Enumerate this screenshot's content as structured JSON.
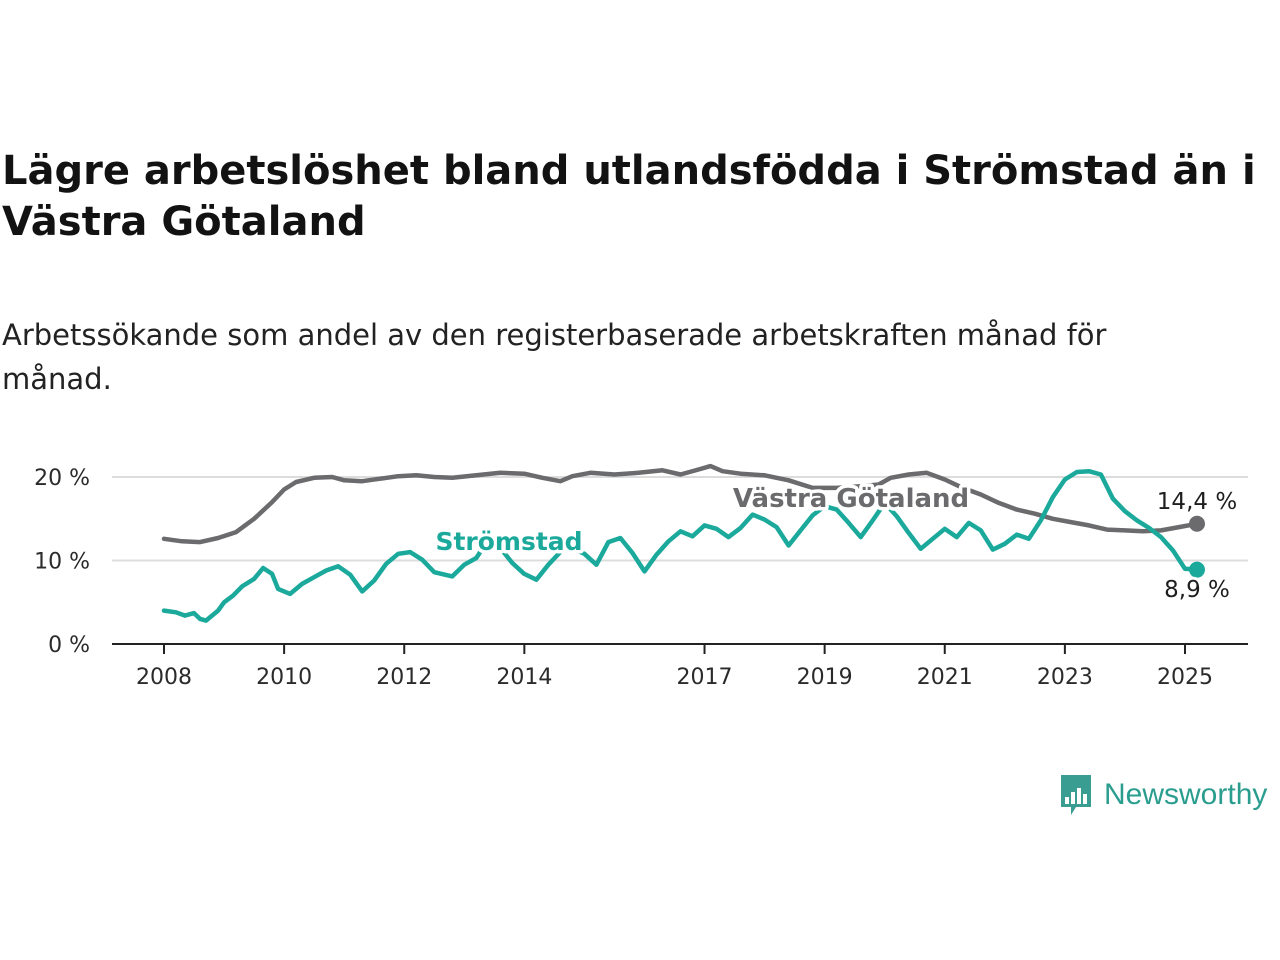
{
  "header": {
    "title": "Lägre arbetslöshet bland utlandsfödda i Strömstad än i Västra Götaland",
    "subtitle": "Arbetssökande som andel av den registerbaserade arbetskraften månad för månad."
  },
  "brand": {
    "name": "Newsworthy",
    "icon": "newsworthy-logo-icon",
    "color": "#3a9d92"
  },
  "chart_data": {
    "type": "line",
    "title": "Lägre arbetslöshet bland utlandsfödda i Strömstad än i Västra Götaland",
    "subtitle": "Arbetssökande som andel av den registerbaserade arbetskraften månad för månad.",
    "xlabel": "",
    "ylabel": "",
    "x_ticks": [
      "2008",
      "2010",
      "2012",
      "2014",
      "2017",
      "2019",
      "2021",
      "2023",
      "2025"
    ],
    "x_tick_values": [
      2008,
      2010,
      2012,
      2014,
      2017,
      2019,
      2021,
      2023,
      2025
    ],
    "y_ticks": [
      "0 %",
      "10 %",
      "20 %"
    ],
    "y_tick_values": [
      0,
      10,
      20
    ],
    "xlim": [
      2008,
      2025.2
    ],
    "ylim": [
      0,
      20
    ],
    "grid": true,
    "legend": "inline labels",
    "series": [
      {
        "name": "Västra Götaland",
        "color": "#6b6b6e",
        "end_label": "14,4 %",
        "points": [
          [
            2008.0,
            12.6
          ],
          [
            2008.3,
            12.3
          ],
          [
            2008.6,
            12.2
          ],
          [
            2008.9,
            12.7
          ],
          [
            2009.2,
            13.4
          ],
          [
            2009.5,
            15.0
          ],
          [
            2009.8,
            17.0
          ],
          [
            2010.0,
            18.5
          ],
          [
            2010.2,
            19.4
          ],
          [
            2010.5,
            19.9
          ],
          [
            2010.8,
            20.0
          ],
          [
            2011.0,
            19.6
          ],
          [
            2011.3,
            19.5
          ],
          [
            2011.6,
            19.8
          ],
          [
            2011.9,
            20.1
          ],
          [
            2012.2,
            20.2
          ],
          [
            2012.5,
            20.0
          ],
          [
            2012.8,
            19.9
          ],
          [
            2013.2,
            20.2
          ],
          [
            2013.6,
            20.5
          ],
          [
            2014.0,
            20.4
          ],
          [
            2014.3,
            19.9
          ],
          [
            2014.6,
            19.5
          ],
          [
            2014.8,
            20.1
          ],
          [
            2015.1,
            20.5
          ],
          [
            2015.5,
            20.3
          ],
          [
            2015.9,
            20.5
          ],
          [
            2016.3,
            20.8
          ],
          [
            2016.6,
            20.3
          ],
          [
            2016.9,
            20.9
          ],
          [
            2017.1,
            21.3
          ],
          [
            2017.3,
            20.7
          ],
          [
            2017.6,
            20.4
          ],
          [
            2018.0,
            20.2
          ],
          [
            2018.4,
            19.6
          ],
          [
            2018.8,
            18.7
          ],
          [
            2019.2,
            18.7
          ],
          [
            2019.6,
            18.9
          ],
          [
            2019.9,
            19.1
          ],
          [
            2020.1,
            19.9
          ],
          [
            2020.4,
            20.3
          ],
          [
            2020.7,
            20.5
          ],
          [
            2021.0,
            19.7
          ],
          [
            2021.3,
            18.7
          ],
          [
            2021.6,
            17.9
          ],
          [
            2021.9,
            16.9
          ],
          [
            2022.2,
            16.1
          ],
          [
            2022.5,
            15.6
          ],
          [
            2022.8,
            15.0
          ],
          [
            2023.1,
            14.6
          ],
          [
            2023.4,
            14.2
          ],
          [
            2023.7,
            13.7
          ],
          [
            2024.0,
            13.6
          ],
          [
            2024.3,
            13.5
          ],
          [
            2024.6,
            13.6
          ],
          [
            2024.9,
            14.0
          ],
          [
            2025.2,
            14.4
          ]
        ]
      },
      {
        "name": "Strömstad",
        "color": "#1ba99c",
        "end_label": "8,9 %",
        "points": [
          [
            2008.0,
            4.0
          ],
          [
            2008.2,
            3.8
          ],
          [
            2008.35,
            3.4
          ],
          [
            2008.5,
            3.7
          ],
          [
            2008.6,
            3.0
          ],
          [
            2008.7,
            2.8
          ],
          [
            2008.9,
            4.0
          ],
          [
            2009.0,
            5.0
          ],
          [
            2009.15,
            5.8
          ],
          [
            2009.3,
            6.9
          ],
          [
            2009.5,
            7.8
          ],
          [
            2009.65,
            9.1
          ],
          [
            2009.8,
            8.4
          ],
          [
            2009.9,
            6.6
          ],
          [
            2010.1,
            6.0
          ],
          [
            2010.3,
            7.2
          ],
          [
            2010.5,
            8.0
          ],
          [
            2010.7,
            8.8
          ],
          [
            2010.9,
            9.3
          ],
          [
            2011.1,
            8.3
          ],
          [
            2011.3,
            6.3
          ],
          [
            2011.5,
            7.6
          ],
          [
            2011.7,
            9.6
          ],
          [
            2011.9,
            10.8
          ],
          [
            2012.1,
            11.0
          ],
          [
            2012.3,
            10.1
          ],
          [
            2012.5,
            8.6
          ],
          [
            2012.8,
            8.1
          ],
          [
            2013.0,
            9.5
          ],
          [
            2013.2,
            10.3
          ],
          [
            2013.4,
            12.5
          ],
          [
            2013.6,
            11.5
          ],
          [
            2013.8,
            9.7
          ],
          [
            2014.0,
            8.4
          ],
          [
            2014.2,
            7.7
          ],
          [
            2014.4,
            9.5
          ],
          [
            2014.7,
            11.8
          ],
          [
            2015.0,
            10.8
          ],
          [
            2015.2,
            9.5
          ],
          [
            2015.4,
            12.2
          ],
          [
            2015.6,
            12.7
          ],
          [
            2015.8,
            10.9
          ],
          [
            2016.0,
            8.7
          ],
          [
            2016.2,
            10.7
          ],
          [
            2016.4,
            12.3
          ],
          [
            2016.6,
            13.5
          ],
          [
            2016.8,
            12.9
          ],
          [
            2017.0,
            14.2
          ],
          [
            2017.2,
            13.8
          ],
          [
            2017.4,
            12.8
          ],
          [
            2017.6,
            13.9
          ],
          [
            2017.8,
            15.5
          ],
          [
            2018.0,
            14.9
          ],
          [
            2018.2,
            14.0
          ],
          [
            2018.4,
            11.8
          ],
          [
            2018.6,
            13.6
          ],
          [
            2018.8,
            15.4
          ],
          [
            2019.0,
            16.5
          ],
          [
            2019.2,
            16.1
          ],
          [
            2019.4,
            14.5
          ],
          [
            2019.6,
            12.8
          ],
          [
            2019.8,
            14.8
          ],
          [
            2020.0,
            16.9
          ],
          [
            2020.2,
            15.3
          ],
          [
            2020.4,
            13.3
          ],
          [
            2020.6,
            11.4
          ],
          [
            2020.8,
            12.6
          ],
          [
            2021.0,
            13.8
          ],
          [
            2021.2,
            12.8
          ],
          [
            2021.4,
            14.5
          ],
          [
            2021.6,
            13.6
          ],
          [
            2021.8,
            11.3
          ],
          [
            2022.0,
            12.0
          ],
          [
            2022.2,
            13.1
          ],
          [
            2022.4,
            12.6
          ],
          [
            2022.6,
            14.8
          ],
          [
            2022.8,
            17.6
          ],
          [
            2023.0,
            19.7
          ],
          [
            2023.2,
            20.6
          ],
          [
            2023.4,
            20.7
          ],
          [
            2023.6,
            20.3
          ],
          [
            2023.8,
            17.4
          ],
          [
            2024.0,
            15.9
          ],
          [
            2024.2,
            14.8
          ],
          [
            2024.4,
            13.9
          ],
          [
            2024.6,
            12.8
          ],
          [
            2024.8,
            11.2
          ],
          [
            2025.0,
            9.0
          ],
          [
            2025.2,
            8.9
          ]
        ]
      }
    ]
  }
}
